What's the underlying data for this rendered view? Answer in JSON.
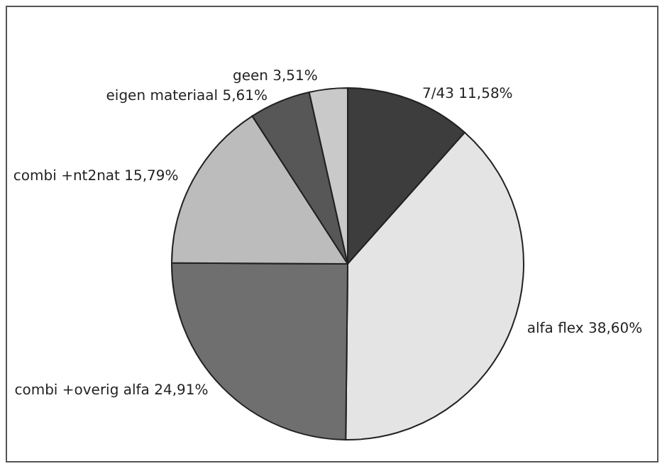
{
  "chart_data": {
    "type": "pie",
    "categories": [
      "7/43",
      "alfa flex",
      "combi +overig alfa",
      "combi +nt2nat",
      "eigen materiaal",
      "geen"
    ],
    "values": [
      11.58,
      38.6,
      24.91,
      15.79,
      5.61,
      3.51
    ],
    "value_labels": [
      "11,58%",
      "38,60%",
      "24,91%",
      "15,79%",
      "5,61%",
      "3,51%"
    ],
    "colors": [
      "#3d3d3d",
      "#e4e4e4",
      "#6f6f6f",
      "#bcbcbc",
      "#575757",
      "#c9c9c9"
    ],
    "legend": false
  }
}
